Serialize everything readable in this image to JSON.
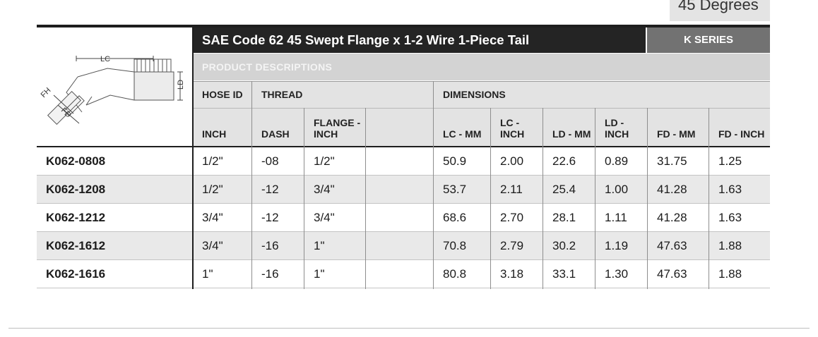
{
  "tab_label": "45 Degrees",
  "title": "SAE Code 62 45 Swept Flange x 1-2 Wire 1-Piece Tail",
  "series": "K SERIES",
  "subheading": "PRODUCT DESCRIPTIONS",
  "diagram": {
    "labels": {
      "lc": "LC",
      "ld": "LD",
      "fh": "FH",
      "fd": "FD"
    }
  },
  "header_groups": {
    "hose_id": "HOSE ID",
    "thread": "THREAD",
    "dimensions": "DIMENSIONS"
  },
  "columns": {
    "inch": "INCH",
    "dash": "DASH",
    "flange_inch": "FLANGE - INCH",
    "lc_mm": "LC - MM",
    "lc_inch": "LC - INCH",
    "ld_mm": "LD - MM",
    "ld_inch": "LD - INCH",
    "fd_mm": "FD - MM",
    "fd_inch": "FD - INCH"
  },
  "rows": [
    {
      "part": "K062-0808",
      "inch": "1/2\"",
      "dash": "-08",
      "flange": "1/2\"",
      "lc_mm": "50.9",
      "lc_inch": "2.00",
      "ld_mm": "22.6",
      "ld_inch": "0.89",
      "fd_mm": "31.75",
      "fd_inch": "1.25"
    },
    {
      "part": "K062-1208",
      "inch": "1/2\"",
      "dash": "-12",
      "flange": "3/4\"",
      "lc_mm": "53.7",
      "lc_inch": "2.11",
      "ld_mm": "25.4",
      "ld_inch": "1.00",
      "fd_mm": "41.28",
      "fd_inch": "1.63"
    },
    {
      "part": "K062-1212",
      "inch": "3/4\"",
      "dash": "-12",
      "flange": "3/4\"",
      "lc_mm": "68.6",
      "lc_inch": "2.70",
      "ld_mm": "28.1",
      "ld_inch": "1.11",
      "fd_mm": "41.28",
      "fd_inch": "1.63"
    },
    {
      "part": "K062-1612",
      "inch": "3/4\"",
      "dash": "-16",
      "flange": "1\"",
      "lc_mm": "70.8",
      "lc_inch": "2.79",
      "ld_mm": "30.2",
      "ld_inch": "1.19",
      "fd_mm": "47.63",
      "fd_inch": "1.88"
    },
    {
      "part": "K062-1616",
      "inch": "1\"",
      "dash": "-16",
      "flange": "1\"",
      "lc_mm": "80.8",
      "lc_inch": "3.18",
      "ld_mm": "33.1",
      "ld_inch": "1.30",
      "fd_mm": "47.63",
      "fd_inch": "1.88"
    }
  ]
}
